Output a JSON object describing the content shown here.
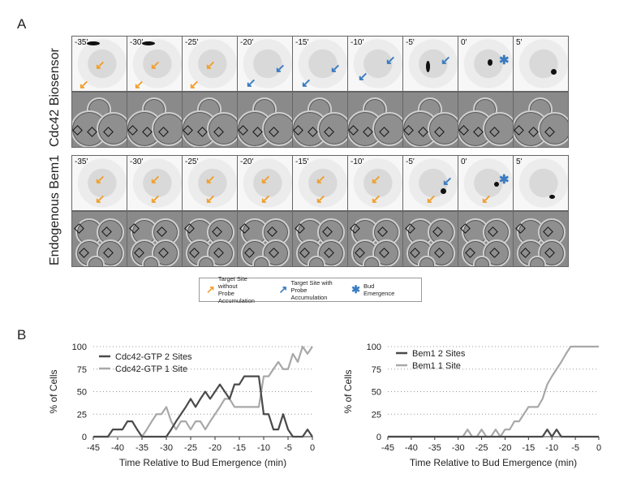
{
  "panel_a_label": "A",
  "panel_b_label": "B",
  "row_labels": {
    "cdc42": "Cdc42 Biosensor",
    "bem1": "Endogenous Bem1"
  },
  "timepoints": [
    "-35'",
    "-30'",
    "-25'",
    "-20'",
    "-15'",
    "-10'",
    "-5'",
    "0'",
    "5'"
  ],
  "legend": {
    "item1": "Target Site without Probe Accumulation",
    "item1_line1": "Target Site without",
    "item1_line2": "Probe Accumulation",
    "item2": "Target Site with Probe Accumulation",
    "item2_line1": "Target Site with",
    "item2_line2": "Probe Accumulation",
    "item3": "Bud Emergence",
    "colors": {
      "orange": "#f0a030",
      "blue": "#3a7bc0"
    }
  },
  "chart_data": [
    {
      "type": "line",
      "xlabel": "Time Relative to Bud Emergence (min)",
      "ylabel": "% of Cells",
      "xlim": [
        -45,
        0
      ],
      "ylim": [
        0,
        100
      ],
      "xticks": [
        -45,
        -40,
        -35,
        -30,
        -25,
        -20,
        -15,
        -10,
        -5,
        0
      ],
      "yticks": [
        0,
        25,
        50,
        75,
        100
      ],
      "grid": "horizontal dotted",
      "legend_position": "top-left",
      "x": [
        -45,
        -44,
        -43,
        -42,
        -41,
        -40,
        -39,
        -38,
        -37,
        -36,
        -35,
        -34,
        -33,
        -32,
        -31,
        -30,
        -29,
        -28,
        -27,
        -26,
        -25,
        -24,
        -23,
        -22,
        -21,
        -20,
        -19,
        -18,
        -17,
        -16,
        -15,
        -14,
        -13,
        -12,
        -11,
        -10,
        -9,
        -8,
        -7,
        -6,
        -5,
        -4,
        -3,
        -2,
        -1,
        0
      ],
      "series": [
        {
          "name": "Cdc42-GTP 2 Sites",
          "color": "#4a4a4a",
          "values": [
            0,
            0,
            0,
            0,
            8,
            8,
            8,
            17,
            17,
            8,
            0,
            0,
            0,
            0,
            0,
            0,
            8,
            17,
            25,
            33,
            42,
            33,
            42,
            50,
            42,
            50,
            58,
            50,
            42,
            58,
            58,
            67,
            67,
            67,
            67,
            25,
            25,
            8,
            8,
            25,
            8,
            0,
            0,
            0,
            8,
            0
          ]
        },
        {
          "name": "Cdc42-GTP 1 Site",
          "color": "#a8a8a8",
          "values": [
            0,
            0,
            0,
            0,
            0,
            0,
            0,
            0,
            0,
            0,
            0,
            8,
            17,
            25,
            25,
            33,
            17,
            8,
            17,
            17,
            8,
            17,
            17,
            8,
            17,
            25,
            33,
            42,
            42,
            33,
            33,
            33,
            33,
            33,
            33,
            67,
            67,
            75,
            83,
            75,
            75,
            92,
            83,
            100,
            92,
            100
          ]
        }
      ]
    },
    {
      "type": "line",
      "xlabel": "Time Relative to Bud Emergence (min)",
      "ylabel": "% of Cells",
      "xlim": [
        -45,
        0
      ],
      "ylim": [
        0,
        100
      ],
      "xticks": [
        -45,
        -40,
        -35,
        -30,
        -25,
        -20,
        -15,
        -10,
        -5,
        0
      ],
      "yticks": [
        0,
        25,
        50,
        75,
        100
      ],
      "grid": "horizontal dotted",
      "legend_position": "top-left",
      "x": [
        -45,
        -44,
        -43,
        -42,
        -41,
        -40,
        -39,
        -38,
        -37,
        -36,
        -35,
        -34,
        -33,
        -32,
        -31,
        -30,
        -29,
        -28,
        -27,
        -26,
        -25,
        -24,
        -23,
        -22,
        -21,
        -20,
        -19,
        -18,
        -17,
        -16,
        -15,
        -14,
        -13,
        -12,
        -11,
        -10,
        -9,
        -8,
        -7,
        -6,
        -5,
        -4,
        -3,
        -2,
        -1,
        0
      ],
      "series": [
        {
          "name": "Bem1 2 Sites",
          "color": "#4a4a4a",
          "values": [
            0,
            0,
            0,
            0,
            0,
            0,
            0,
            0,
            0,
            0,
            0,
            0,
            0,
            0,
            0,
            0,
            0,
            0,
            0,
            0,
            0,
            0,
            0,
            0,
            0,
            0,
            0,
            0,
            0,
            0,
            0,
            0,
            0,
            0,
            8,
            0,
            8,
            0,
            0,
            0,
            0,
            0,
            0,
            0,
            0,
            0
          ]
        },
        {
          "name": "Bem1 1 Site",
          "color": "#a8a8a8",
          "values": [
            0,
            0,
            0,
            0,
            0,
            0,
            0,
            0,
            0,
            0,
            0,
            0,
            0,
            0,
            0,
            0,
            0,
            8,
            0,
            0,
            8,
            0,
            0,
            8,
            0,
            8,
            8,
            17,
            17,
            25,
            33,
            33,
            33,
            42,
            58,
            67,
            75,
            83,
            92,
            100,
            100,
            100,
            100,
            100,
            100,
            100
          ]
        }
      ]
    }
  ]
}
